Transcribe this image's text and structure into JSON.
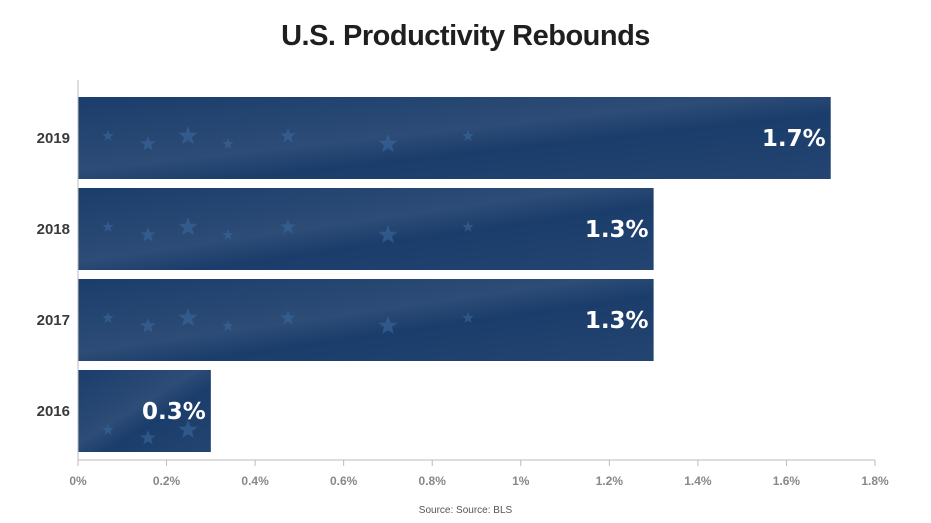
{
  "chart_data": {
    "type": "bar",
    "orientation": "horizontal",
    "title": "U.S. Productivity Rebounds",
    "categories": [
      "2019",
      "2018",
      "2017",
      "2016"
    ],
    "values": [
      1.7,
      1.3,
      1.3,
      0.3
    ],
    "data_labels": [
      "1.7%",
      "1.3%",
      "1.3%",
      "0.3%"
    ],
    "xlim": [
      0,
      1.8
    ],
    "x_ticks": [
      0,
      0.2,
      0.4,
      0.6,
      0.8,
      1.0,
      1.2,
      1.4,
      1.6,
      1.8
    ],
    "x_tick_labels": [
      "0%",
      "0.2%",
      "0.4%",
      "0.6%",
      "0.8%",
      "1%",
      "1.2%",
      "1.4%",
      "1.6%",
      "1.8%"
    ],
    "xlabel": "",
    "ylabel": "",
    "grid": false,
    "legend": "none",
    "source": "Source: Source: BLS",
    "colors": {
      "bar": "#1b3d6b",
      "bar_highlight": "#2b5a8e",
      "star": "#3d6aa0",
      "axis": "#bbbbbb"
    }
  }
}
